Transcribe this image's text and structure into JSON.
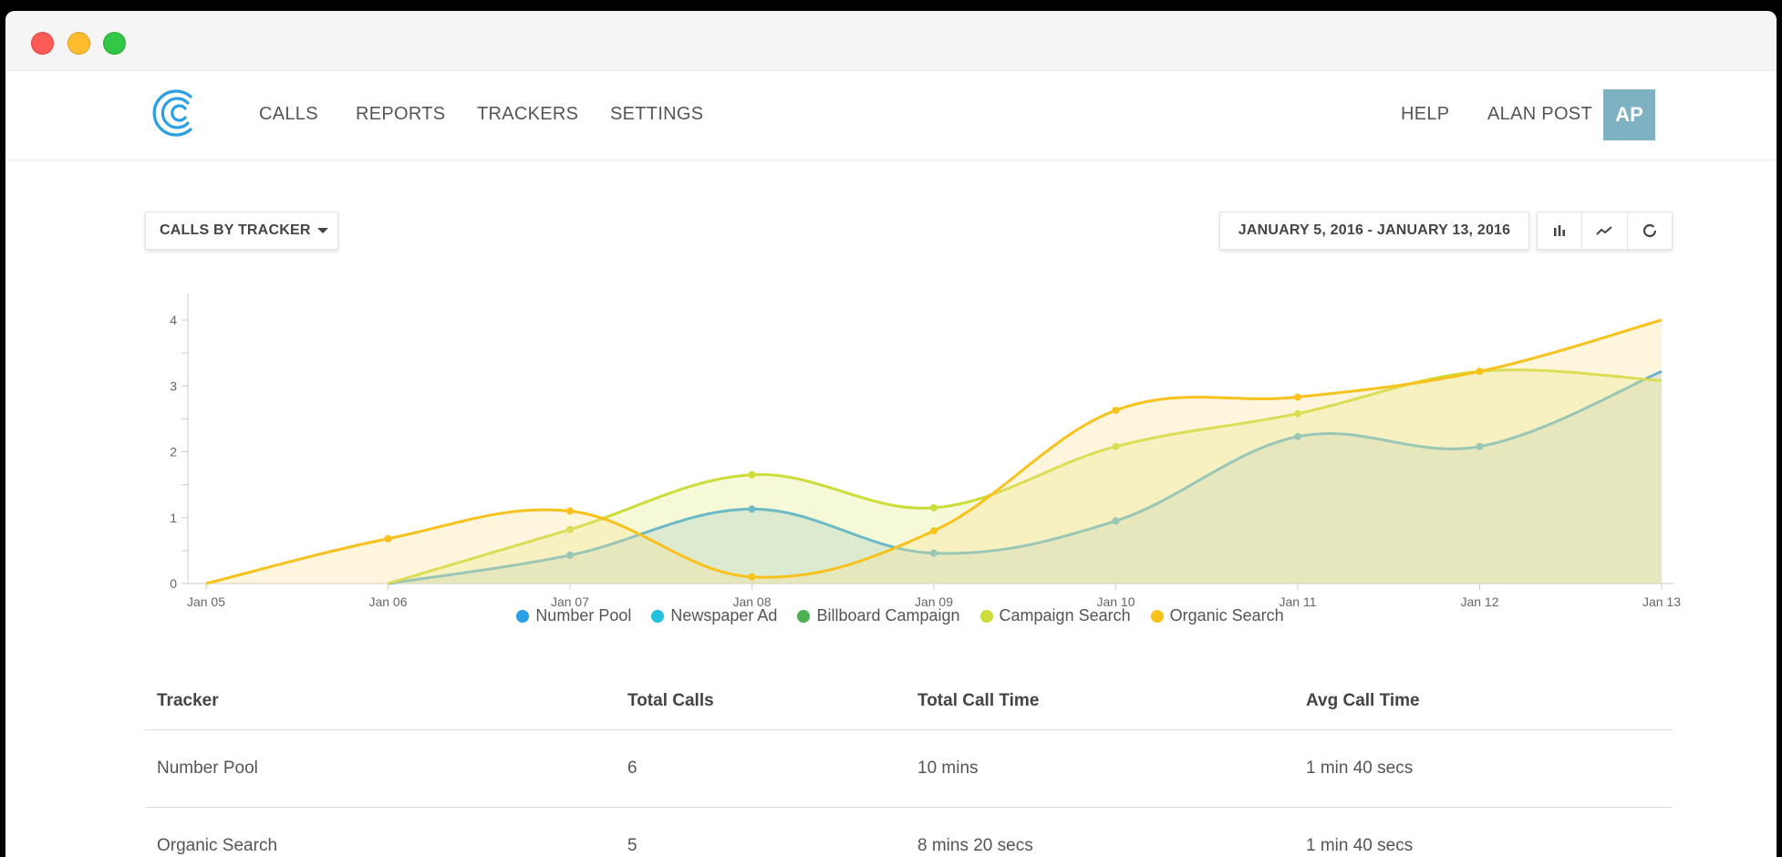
{
  "nav": {
    "items": [
      "CALLS",
      "REPORTS",
      "TRACKERS",
      "SETTINGS"
    ],
    "help": "HELP",
    "user_name": "ALAN POST",
    "avatar_initials": "AP",
    "avatar_color": "#7eb2c3",
    "logo_icon": "concentric-c-logo-icon",
    "logo_color": "#2b9fe3"
  },
  "toolbar": {
    "report_select": "CALLS BY TRACKER",
    "date_range": "JANUARY 5, 2016 - JANUARY 13, 2016",
    "view_icons": [
      "bar-chart-icon",
      "line-chart-icon",
      "donut-chart-icon"
    ]
  },
  "chart_data": {
    "type": "area",
    "categories": [
      "Jan 05",
      "Jan 06",
      "Jan 07",
      "Jan 08",
      "Jan 09",
      "Jan 10",
      "Jan 11",
      "Jan 12",
      "Jan 13"
    ],
    "ylim": [
      0,
      4
    ],
    "y_ticks": [
      0,
      1,
      2,
      3,
      4
    ],
    "grid": false,
    "legend_position": "bottom",
    "series": [
      {
        "name": "Number Pool",
        "color": "#2b9fe3",
        "values": [
          0,
          0,
          0.43,
          1.13,
          0.46,
          0.95,
          2.23,
          2.08,
          3.22
        ]
      },
      {
        "name": "Newspaper Ad",
        "color": "#22c0db",
        "values": [
          0,
          0,
          0,
          0,
          0,
          0,
          0,
          0,
          0
        ]
      },
      {
        "name": "Billboard Campaign",
        "color": "#4caf50",
        "values": [
          0,
          0,
          0,
          0,
          0,
          0,
          0,
          0,
          0
        ]
      },
      {
        "name": "Campaign Search",
        "color": "#cddc39",
        "values": [
          0,
          0,
          0.82,
          1.65,
          1.15,
          2.08,
          2.58,
          3.22,
          3.08
        ]
      },
      {
        "name": "Organic Search",
        "color": "#f8c11b",
        "values": [
          0,
          0.68,
          1.1,
          0.1,
          0.8,
          2.63,
          2.83,
          3.22,
          4.0
        ]
      }
    ]
  },
  "table": {
    "headers": [
      "Tracker",
      "Total Calls",
      "Total Call Time",
      "Avg Call Time"
    ],
    "rows": [
      [
        "Number Pool",
        "6",
        "10 mins",
        "1 min 40 secs"
      ],
      [
        "Organic Search",
        "5",
        "8 mins 20 secs",
        "1 min 40 secs"
      ]
    ]
  }
}
